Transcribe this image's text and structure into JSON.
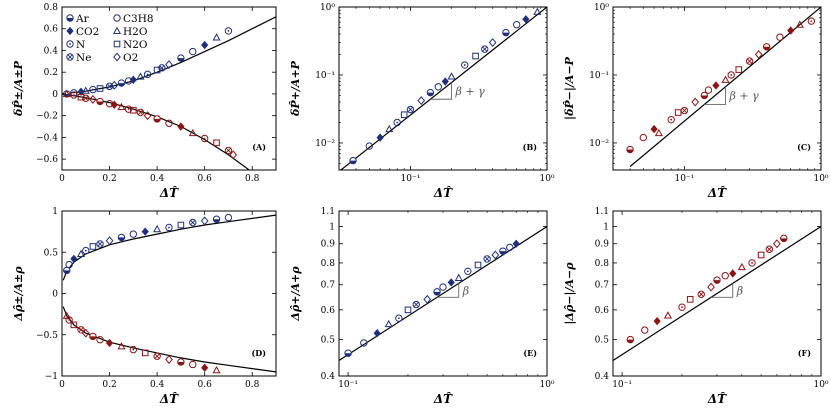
{
  "colors": {
    "blue": "#1f2f7a",
    "red": "#8b1414",
    "black": "#000000"
  },
  "legend": [
    {
      "label": "Ar",
      "marker": "circle-half"
    },
    {
      "label": "C3H8",
      "marker": "circle-open"
    },
    {
      "label": "CO2",
      "marker": "diamond"
    },
    {
      "label": "H2O",
      "marker": "triangle"
    },
    {
      "label": "N",
      "marker": "circle-dot"
    },
    {
      "label": "N2O",
      "marker": "square"
    },
    {
      "label": "Ne",
      "marker": "circle-x"
    },
    {
      "label": "O2",
      "marker": "diamond-open"
    }
  ],
  "chart_data": [
    {
      "id": "A",
      "tag": "(A)",
      "type": "scatter",
      "xlabel": "ΔT̂",
      "ylabel": "δP̂±/A±P",
      "xlim": [
        0,
        0.9
      ],
      "ylim": [
        -0.7,
        0.8
      ],
      "log": false,
      "xticks": [
        0,
        0.2,
        0.4,
        0.6,
        0.8
      ],
      "xticklabels": [
        "0",
        "0.2",
        "0.4",
        "0.6",
        "0.8"
      ],
      "yticks": [
        -0.6,
        -0.4,
        -0.2,
        0,
        0.2,
        0.4,
        0.6,
        0.8
      ],
      "yticklabels": [
        "−0.6",
        "−0.4",
        "−0.2",
        "0",
        "0.2",
        "0.4",
        "0.6",
        "0.8"
      ],
      "series": [
        {
          "color": "blue",
          "x": [
            0.02,
            0.05,
            0.08,
            0.1,
            0.13,
            0.16,
            0.2,
            0.22,
            0.25,
            0.28,
            0.3,
            0.33,
            0.36,
            0.4,
            0.42,
            0.45,
            0.5,
            0.55,
            0.6,
            0.65,
            0.7
          ],
          "y": [
            0.0,
            0.01,
            0.02,
            0.03,
            0.04,
            0.05,
            0.07,
            0.08,
            0.1,
            0.12,
            0.13,
            0.16,
            0.18,
            0.22,
            0.24,
            0.27,
            0.33,
            0.39,
            0.45,
            0.52,
            0.58
          ]
        },
        {
          "color": "red",
          "x": [
            0.02,
            0.05,
            0.08,
            0.1,
            0.13,
            0.16,
            0.2,
            0.22,
            0.25,
            0.28,
            0.3,
            0.33,
            0.36,
            0.4,
            0.45,
            0.5,
            0.55,
            0.6,
            0.65,
            0.7,
            0.72
          ],
          "y": [
            0.0,
            -0.01,
            -0.03,
            -0.04,
            -0.05,
            -0.07,
            -0.09,
            -0.1,
            -0.12,
            -0.14,
            -0.15,
            -0.17,
            -0.2,
            -0.23,
            -0.27,
            -0.3,
            -0.36,
            -0.41,
            -0.45,
            -0.52,
            -0.56
          ]
        }
      ],
      "fits": [
        {
          "x": [
            0,
            0.1,
            0.2,
            0.3,
            0.4,
            0.5,
            0.6,
            0.7,
            0.8,
            0.9
          ],
          "y": [
            0,
            0.025,
            0.065,
            0.12,
            0.2,
            0.29,
            0.39,
            0.49,
            0.6,
            0.71
          ]
        },
        {
          "x": [
            0,
            0.1,
            0.2,
            0.3,
            0.4,
            0.5,
            0.6,
            0.7,
            0.8
          ],
          "y": [
            0,
            -0.035,
            -0.08,
            -0.14,
            -0.21,
            -0.3,
            -0.42,
            -0.56,
            -0.72
          ]
        }
      ]
    },
    {
      "id": "B",
      "tag": "(B)",
      "type": "scatter",
      "xlabel": "ΔT̂",
      "ylabel": "δP̂+/A+P",
      "xlim": [
        0.03,
        1
      ],
      "ylim": [
        0.004,
        1
      ],
      "log": true,
      "xticks": [
        0.1,
        1
      ],
      "xticklabels": [
        "10⁻¹",
        "10⁰"
      ],
      "yticks": [
        0.01,
        0.1,
        1
      ],
      "yticklabels": [
        "10⁻²",
        "10⁻¹",
        "10⁰"
      ],
      "annotation": "β + γ",
      "series": [
        {
          "color": "blue",
          "x": [
            0.038,
            0.05,
            0.06,
            0.07,
            0.08,
            0.09,
            0.1,
            0.12,
            0.14,
            0.16,
            0.18,
            0.2,
            0.25,
            0.3,
            0.35,
            0.4,
            0.5,
            0.6,
            0.7,
            0.85
          ],
          "y": [
            0.0055,
            0.009,
            0.012,
            0.016,
            0.02,
            0.026,
            0.031,
            0.042,
            0.055,
            0.067,
            0.08,
            0.095,
            0.14,
            0.19,
            0.24,
            0.3,
            0.42,
            0.55,
            0.66,
            0.85
          ]
        }
      ],
      "fits": [
        {
          "x": [
            0.03,
            1
          ],
          "y": [
            0.0038,
            1
          ]
        }
      ]
    },
    {
      "id": "C",
      "tag": "(C)",
      "type": "scatter",
      "xlabel": "ΔT̂",
      "ylabel": "|δP̂−|/A−P",
      "xlim": [
        0.03,
        1
      ],
      "ylim": [
        0.004,
        1
      ],
      "log": true,
      "xticks": [
        0.1,
        1
      ],
      "xticklabels": [
        "10⁻¹",
        "10⁰"
      ],
      "yticks": [
        0.01,
        0.1,
        1
      ],
      "yticklabels": [
        "10⁻²",
        "10⁻¹",
        "10⁰"
      ],
      "annotation": "β + γ",
      "series": [
        {
          "color": "red",
          "x": [
            0.04,
            0.05,
            0.06,
            0.065,
            0.08,
            0.09,
            0.1,
            0.12,
            0.14,
            0.15,
            0.17,
            0.2,
            0.22,
            0.25,
            0.3,
            0.35,
            0.4,
            0.5,
            0.6,
            0.7,
            0.85
          ],
          "y": [
            0.008,
            0.012,
            0.016,
            0.014,
            0.022,
            0.028,
            0.03,
            0.04,
            0.05,
            0.06,
            0.07,
            0.085,
            0.1,
            0.12,
            0.16,
            0.2,
            0.26,
            0.36,
            0.45,
            0.55,
            0.62
          ]
        }
      ],
      "fits": [
        {
          "x": [
            0.04,
            1
          ],
          "y": [
            0.0045,
            1
          ]
        }
      ]
    },
    {
      "id": "D",
      "tag": "(D)",
      "type": "scatter",
      "xlabel": "ΔT̂",
      "ylabel": "Δρ̂±/A±ρ",
      "xlim": [
        0,
        0.9
      ],
      "ylim": [
        -1,
        1
      ],
      "log": false,
      "xticks": [
        0,
        0.2,
        0.4,
        0.6,
        0.8
      ],
      "xticklabels": [
        "0",
        "0.2",
        "0.4",
        "0.6",
        "0.8"
      ],
      "yticks": [
        -1,
        -0.5,
        0,
        0.5,
        1
      ],
      "yticklabels": [
        "−1",
        "−0.5",
        "0",
        "0.5",
        "1"
      ],
      "series": [
        {
          "color": "blue",
          "x": [
            0.02,
            0.03,
            0.05,
            0.08,
            0.1,
            0.13,
            0.16,
            0.2,
            0.25,
            0.3,
            0.35,
            0.4,
            0.45,
            0.5,
            0.55,
            0.6,
            0.65,
            0.7
          ],
          "y": [
            0.28,
            0.35,
            0.42,
            0.48,
            0.52,
            0.57,
            0.6,
            0.64,
            0.68,
            0.72,
            0.75,
            0.78,
            0.8,
            0.83,
            0.86,
            0.88,
            0.9,
            0.92
          ]
        },
        {
          "color": "red",
          "x": [
            0.02,
            0.03,
            0.05,
            0.08,
            0.1,
            0.13,
            0.16,
            0.2,
            0.25,
            0.3,
            0.35,
            0.4,
            0.45,
            0.5,
            0.55,
            0.6,
            0.65
          ],
          "y": [
            -0.27,
            -0.32,
            -0.38,
            -0.44,
            -0.48,
            -0.52,
            -0.56,
            -0.6,
            -0.64,
            -0.68,
            -0.72,
            -0.76,
            -0.8,
            -0.83,
            -0.86,
            -0.9,
            -0.93
          ]
        }
      ],
      "fits": [
        {
          "x": [
            0.005,
            0.02,
            0.05,
            0.1,
            0.2,
            0.3,
            0.4,
            0.5,
            0.6,
            0.7,
            0.8,
            0.9
          ],
          "y": [
            0.16,
            0.27,
            0.38,
            0.48,
            0.59,
            0.66,
            0.72,
            0.78,
            0.83,
            0.87,
            0.91,
            0.95
          ]
        },
        {
          "x": [
            0.005,
            0.02,
            0.05,
            0.1,
            0.2,
            0.3,
            0.4,
            0.5,
            0.6,
            0.7,
            0.8,
            0.9
          ],
          "y": [
            -0.16,
            -0.27,
            -0.38,
            -0.48,
            -0.59,
            -0.66,
            -0.72,
            -0.78,
            -0.83,
            -0.87,
            -0.91,
            -0.95
          ]
        }
      ]
    },
    {
      "id": "E",
      "tag": "(E)",
      "type": "scatter",
      "xlabel": "ΔT̂",
      "ylabel": "Δρ̂+/A+ρ",
      "xlim": [
        0.09,
        1
      ],
      "ylim": [
        0.4,
        1.1
      ],
      "log": true,
      "xticks": [
        0.1,
        1
      ],
      "xticklabels": [
        "10⁻¹",
        "10⁰"
      ],
      "yticks": [
        0.4,
        0.5,
        0.6,
        0.7,
        0.8,
        0.9,
        1,
        1.1
      ],
      "yticklabels": [
        "0.4",
        "0.5",
        "0.6",
        "0.7",
        "0.8",
        "0.9",
        "1",
        "1.1"
      ],
      "annotation": "β",
      "series": [
        {
          "color": "blue",
          "x": [
            0.1,
            0.12,
            0.14,
            0.16,
            0.18,
            0.2,
            0.22,
            0.25,
            0.28,
            0.3,
            0.33,
            0.36,
            0.4,
            0.45,
            0.5,
            0.55,
            0.6,
            0.65,
            0.7
          ],
          "y": [
            0.46,
            0.49,
            0.52,
            0.55,
            0.57,
            0.6,
            0.62,
            0.64,
            0.67,
            0.69,
            0.71,
            0.73,
            0.76,
            0.79,
            0.82,
            0.84,
            0.86,
            0.88,
            0.9
          ]
        }
      ],
      "fits": [
        {
          "x": [
            0.09,
            1
          ],
          "y": [
            0.44,
            1
          ]
        }
      ]
    },
    {
      "id": "F",
      "tag": "(F)",
      "type": "scatter",
      "xlabel": "ΔT̂",
      "ylabel": "|Δρ̂−|/A−ρ",
      "xlim": [
        0.09,
        1
      ],
      "ylim": [
        0.4,
        1.1
      ],
      "log": true,
      "xticks": [
        0.1,
        1
      ],
      "xticklabels": [
        "10⁻¹",
        "10⁰"
      ],
      "yticks": [
        0.4,
        0.5,
        0.6,
        0.7,
        0.8,
        0.9,
        1,
        1.1
      ],
      "yticklabels": [
        "0.4",
        "0.5",
        "0.6",
        "0.7",
        "0.8",
        "0.9",
        "1",
        "1.1"
      ],
      "annotation": "β",
      "series": [
        {
          "color": "red",
          "x": [
            0.11,
            0.13,
            0.15,
            0.17,
            0.2,
            0.22,
            0.25,
            0.28,
            0.3,
            0.33,
            0.36,
            0.4,
            0.45,
            0.5,
            0.55,
            0.6,
            0.65
          ],
          "y": [
            0.5,
            0.53,
            0.56,
            0.58,
            0.61,
            0.64,
            0.66,
            0.69,
            0.72,
            0.74,
            0.75,
            0.78,
            0.8,
            0.84,
            0.87,
            0.9,
            0.93
          ]
        }
      ],
      "fits": [
        {
          "x": [
            0.09,
            1
          ],
          "y": [
            0.44,
            1
          ]
        }
      ]
    }
  ]
}
